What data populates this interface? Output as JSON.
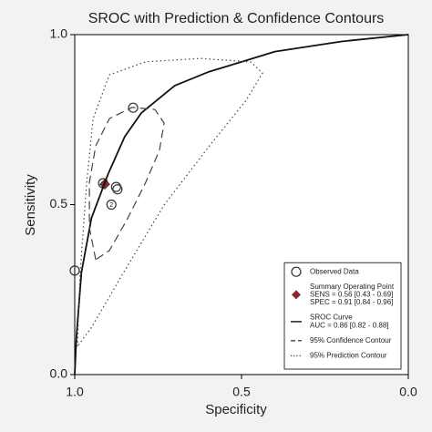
{
  "chart_data": {
    "type": "sroc",
    "title": "SROC with Prediction & Confidence Contours",
    "x_label": "Specificity",
    "y_label": "Sensitivity",
    "xlim": [
      1,
      0
    ],
    "ylim": [
      0,
      1
    ],
    "xticks": [
      {
        "value": 1,
        "label": "1.0"
      },
      0.5,
      {
        "value": 0,
        "label": "0.0"
      }
    ],
    "yticks": [
      {
        "value": 0,
        "label": "0.0"
      },
      0.5,
      {
        "value": 1,
        "label": "1.0"
      }
    ],
    "legend": "bottom-right",
    "series": [
      {
        "name": "Observed Data",
        "kind": "points",
        "color": "#333333",
        "x": [
          1.0,
          0.915,
          0.872,
          0.876,
          0.89,
          0.825
        ],
        "values": [
          0.306,
          0.563,
          0.545,
          0.552,
          0.5,
          0.785
        ],
        "point_labels": [
          null,
          null,
          null,
          null,
          "2",
          null
        ]
      },
      {
        "name": "Summary Operating Point",
        "kind": "summary",
        "color": "#8b2a2e",
        "details": [
          "SENS = 0.56 [0.43 - 0.69]",
          "SPEC = 0.91 [0.84 - 0.96]"
        ],
        "x": [
          0.91
        ],
        "values": [
          0.56
        ]
      },
      {
        "name": "SROC Curve",
        "kind": "curve",
        "style": "solid",
        "color": "#111111",
        "details": [
          "AUC = 0.86 [0.82 - 0.88]"
        ],
        "x": [
          1.0,
          0.995,
          0.98,
          0.95,
          0.9,
          0.85,
          0.8,
          0.7,
          0.6,
          0.5,
          0.4,
          0.2,
          0.0
        ],
        "values": [
          0.0,
          0.11,
          0.3,
          0.46,
          0.59,
          0.7,
          0.77,
          0.85,
          0.89,
          0.92,
          0.95,
          0.98,
          1.0
        ]
      },
      {
        "name": "95% Confidence Contour",
        "kind": "contour",
        "style": "dashed",
        "color": "#444444",
        "x": [
          0.937,
          0.956,
          0.956,
          0.937,
          0.896,
          0.828,
          0.76,
          0.732,
          0.746,
          0.787,
          0.842,
          0.896,
          0.937
        ],
        "values": [
          0.338,
          0.432,
          0.566,
          0.673,
          0.753,
          0.786,
          0.78,
          0.74,
          0.66,
          0.566,
          0.458,
          0.365,
          0.338
        ]
      },
      {
        "name": "95% Prediction Contour",
        "kind": "contour",
        "style": "dotted",
        "color": "#444444",
        "x": [
          0.992,
          0.984,
          0.964,
          0.945,
          0.896,
          0.787,
          0.623,
          0.473,
          0.437,
          0.486,
          0.596,
          0.732,
          0.855,
          0.951,
          0.992
        ],
        "values": [
          0.083,
          0.298,
          0.566,
          0.753,
          0.882,
          0.92,
          0.93,
          0.92,
          0.887,
          0.807,
          0.673,
          0.499,
          0.298,
          0.137,
          0.083
        ]
      }
    ]
  }
}
